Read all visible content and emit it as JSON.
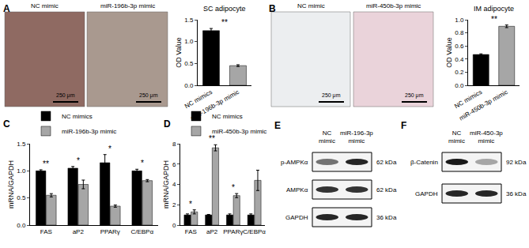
{
  "panel_labels": [
    "A",
    "B",
    "C",
    "D",
    "E",
    "F"
  ],
  "images": [
    {
      "panel": "A",
      "labels": [
        "NC mimic",
        "miR-196b-3p mimic"
      ],
      "scale_bar": "250 μm"
    },
    {
      "panel": "B",
      "labels": [
        "NC mimic",
        "miR-450b-3p mimic"
      ],
      "scale_bar": "250 μm"
    }
  ],
  "chart_data": [
    {
      "type": "bar",
      "title": "SC adipocyte",
      "ylabel": "OD Value",
      "categories": [
        "NC mimics",
        "miR-196b-3p mimic"
      ],
      "values": [
        1.25,
        0.45
      ],
      "errors": [
        0.05,
        0.02
      ],
      "colors": [
        "#000000",
        "#a6a6a6"
      ],
      "ylim": [
        0,
        1.5
      ],
      "yticks": [
        {
          "value": 0,
          "label": "0.0"
        },
        0.5,
        {
          "value": 1,
          "label": "1.0"
        },
        1.5
      ],
      "annotations": [
        "**"
      ],
      "grid": false
    },
    {
      "type": "bar",
      "title": "IM adipocyte",
      "ylabel": "OD Value",
      "categories": [
        "NC mimics",
        "miR-450b-3p mimic"
      ],
      "values": [
        0.47,
        0.9
      ],
      "errors": [
        0.01,
        0.02
      ],
      "colors": [
        "#000000",
        "#a6a6a6"
      ],
      "ylim": [
        0,
        1.0
      ],
      "yticks": [
        {
          "value": 0,
          "label": "0.0"
        },
        0.2,
        0.4,
        0.6,
        0.8,
        {
          "value": 1,
          "label": "1.0"
        }
      ],
      "annotations": [
        "**"
      ],
      "grid": false
    },
    {
      "type": "bar",
      "ylabel": "mRNA/GAPDH",
      "categories": [
        "FAS",
        "aP2",
        "PPARγ",
        "C/EBPα"
      ],
      "series": [
        {
          "name": "NC mimics",
          "color": "#000000",
          "values": [
            1.0,
            1.05,
            1.15,
            1.0
          ],
          "errors": [
            0.02,
            0.03,
            0.15,
            0.03
          ]
        },
        {
          "name": "miR-196b-3p mimic",
          "color": "#a6a6a6",
          "values": [
            0.55,
            0.75,
            0.35,
            0.82
          ],
          "errors": [
            0.03,
            0.08,
            0.02,
            0.02
          ]
        }
      ],
      "ylim": [
        0,
        1.5
      ],
      "yticks": [
        {
          "value": 0,
          "label": "0.0"
        },
        0.5,
        {
          "value": 1,
          "label": "1.0"
        },
        1.5
      ],
      "significance": [
        "**",
        "*",
        "*",
        "*"
      ],
      "legend": "top-left",
      "grid": false
    },
    {
      "type": "bar",
      "ylabel": "mRNA/GAPDH",
      "categories": [
        "FAS",
        "aP2",
        "PPARγ",
        "C/EBPα"
      ],
      "series": [
        {
          "name": "NC mimics",
          "color": "#000000",
          "values": [
            1.0,
            1.0,
            1.0,
            1.0
          ],
          "errors": [
            0.1,
            0.05,
            0.1,
            0.1
          ]
        },
        {
          "name": "miR-450b-3p mimic",
          "color": "#a6a6a6",
          "values": [
            1.3,
            7.6,
            2.9,
            4.4
          ],
          "errors": [
            0.2,
            0.3,
            0.2,
            1.0
          ]
        }
      ],
      "ylim": [
        0,
        8
      ],
      "yticks": [
        0,
        2,
        4,
        6,
        8
      ],
      "significance": [
        "*",
        "**",
        "*",
        null
      ],
      "legend": "top-left",
      "grid": false
    }
  ],
  "blots": [
    {
      "panel": "E",
      "columns": [
        "NC mimic",
        "miR-196-3p mimic"
      ],
      "rows": [
        {
          "label": "p-AMPKα",
          "size": "62 kDa",
          "bands": [
            0.55,
            0.85
          ]
        },
        {
          "label": "AMPKα",
          "size": "62 kDa",
          "bands": [
            0.8,
            0.8
          ]
        },
        {
          "label": "GAPDH",
          "size": "36 kDa",
          "bands": [
            0.85,
            0.85
          ]
        }
      ]
    },
    {
      "panel": "F",
      "columns": [
        "NC mimic",
        "miR-450-3p mimic"
      ],
      "rows": [
        {
          "label": "β-Catenin",
          "size": "92 kDa",
          "bands": [
            0.9,
            0.35
          ]
        },
        {
          "label": "GAPDH",
          "size": "36 kDa",
          "bands": [
            0.85,
            0.85
          ]
        }
      ]
    }
  ]
}
